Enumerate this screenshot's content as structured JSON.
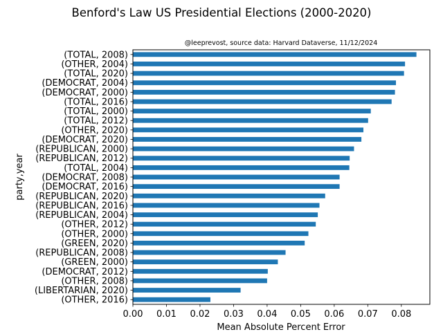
{
  "chart_data": {
    "type": "bar",
    "orientation": "horizontal",
    "title": "Benford's Law US Presidential Elections (2000-2020)",
    "subtitle": "@leeprevost, source data: Harvard Dataverse, 11/12/2024",
    "xlabel": "Mean Absolute Percent Error",
    "ylabel": "party,year",
    "xlim": [
      0,
      0.0885
    ],
    "xticks": [
      0.0,
      0.01,
      0.02,
      0.03,
      0.04,
      0.05,
      0.06,
      0.07,
      0.08
    ],
    "xtick_labels": [
      "0.00",
      "0.01",
      "0.02",
      "0.03",
      "0.04",
      "0.05",
      "0.06",
      "0.07",
      "0.08"
    ],
    "bar_color": "#1f77b4",
    "grid": false,
    "categories": [
      "(TOTAL, 2008)",
      "(OTHER, 2004)",
      "(TOTAL, 2020)",
      "(DEMOCRAT, 2004)",
      "(DEMOCRAT, 2000)",
      "(TOTAL, 2016)",
      "(TOTAL, 2000)",
      "(TOTAL, 2012)",
      "(OTHER, 2020)",
      "(DEMOCRAT, 2020)",
      "(REPUBLICAN, 2000)",
      "(REPUBLICAN, 2012)",
      "(TOTAL, 2004)",
      "(DEMOCRAT, 2008)",
      "(DEMOCRAT, 2016)",
      "(REPUBLICAN, 2020)",
      "(REPUBLICAN, 2016)",
      "(REPUBLICAN, 2004)",
      "(OTHER, 2012)",
      "(OTHER, 2000)",
      "(GREEN, 2020)",
      "(REPUBLICAN, 2008)",
      "(GREEN, 2000)",
      "(DEMOCRAT, 2012)",
      "(OTHER, 2008)",
      "(LIBERTARIAN, 2020)",
      "(OTHER, 2016)"
    ],
    "values": [
      0.0845,
      0.0811,
      0.0808,
      0.0784,
      0.0781,
      0.0771,
      0.0709,
      0.0701,
      0.0687,
      0.0681,
      0.0659,
      0.0646,
      0.0645,
      0.0616,
      0.0616,
      0.0573,
      0.0556,
      0.0551,
      0.0545,
      0.0523,
      0.0512,
      0.0455,
      0.0432,
      0.0402,
      0.04,
      0.0321,
      0.0231
    ]
  }
}
